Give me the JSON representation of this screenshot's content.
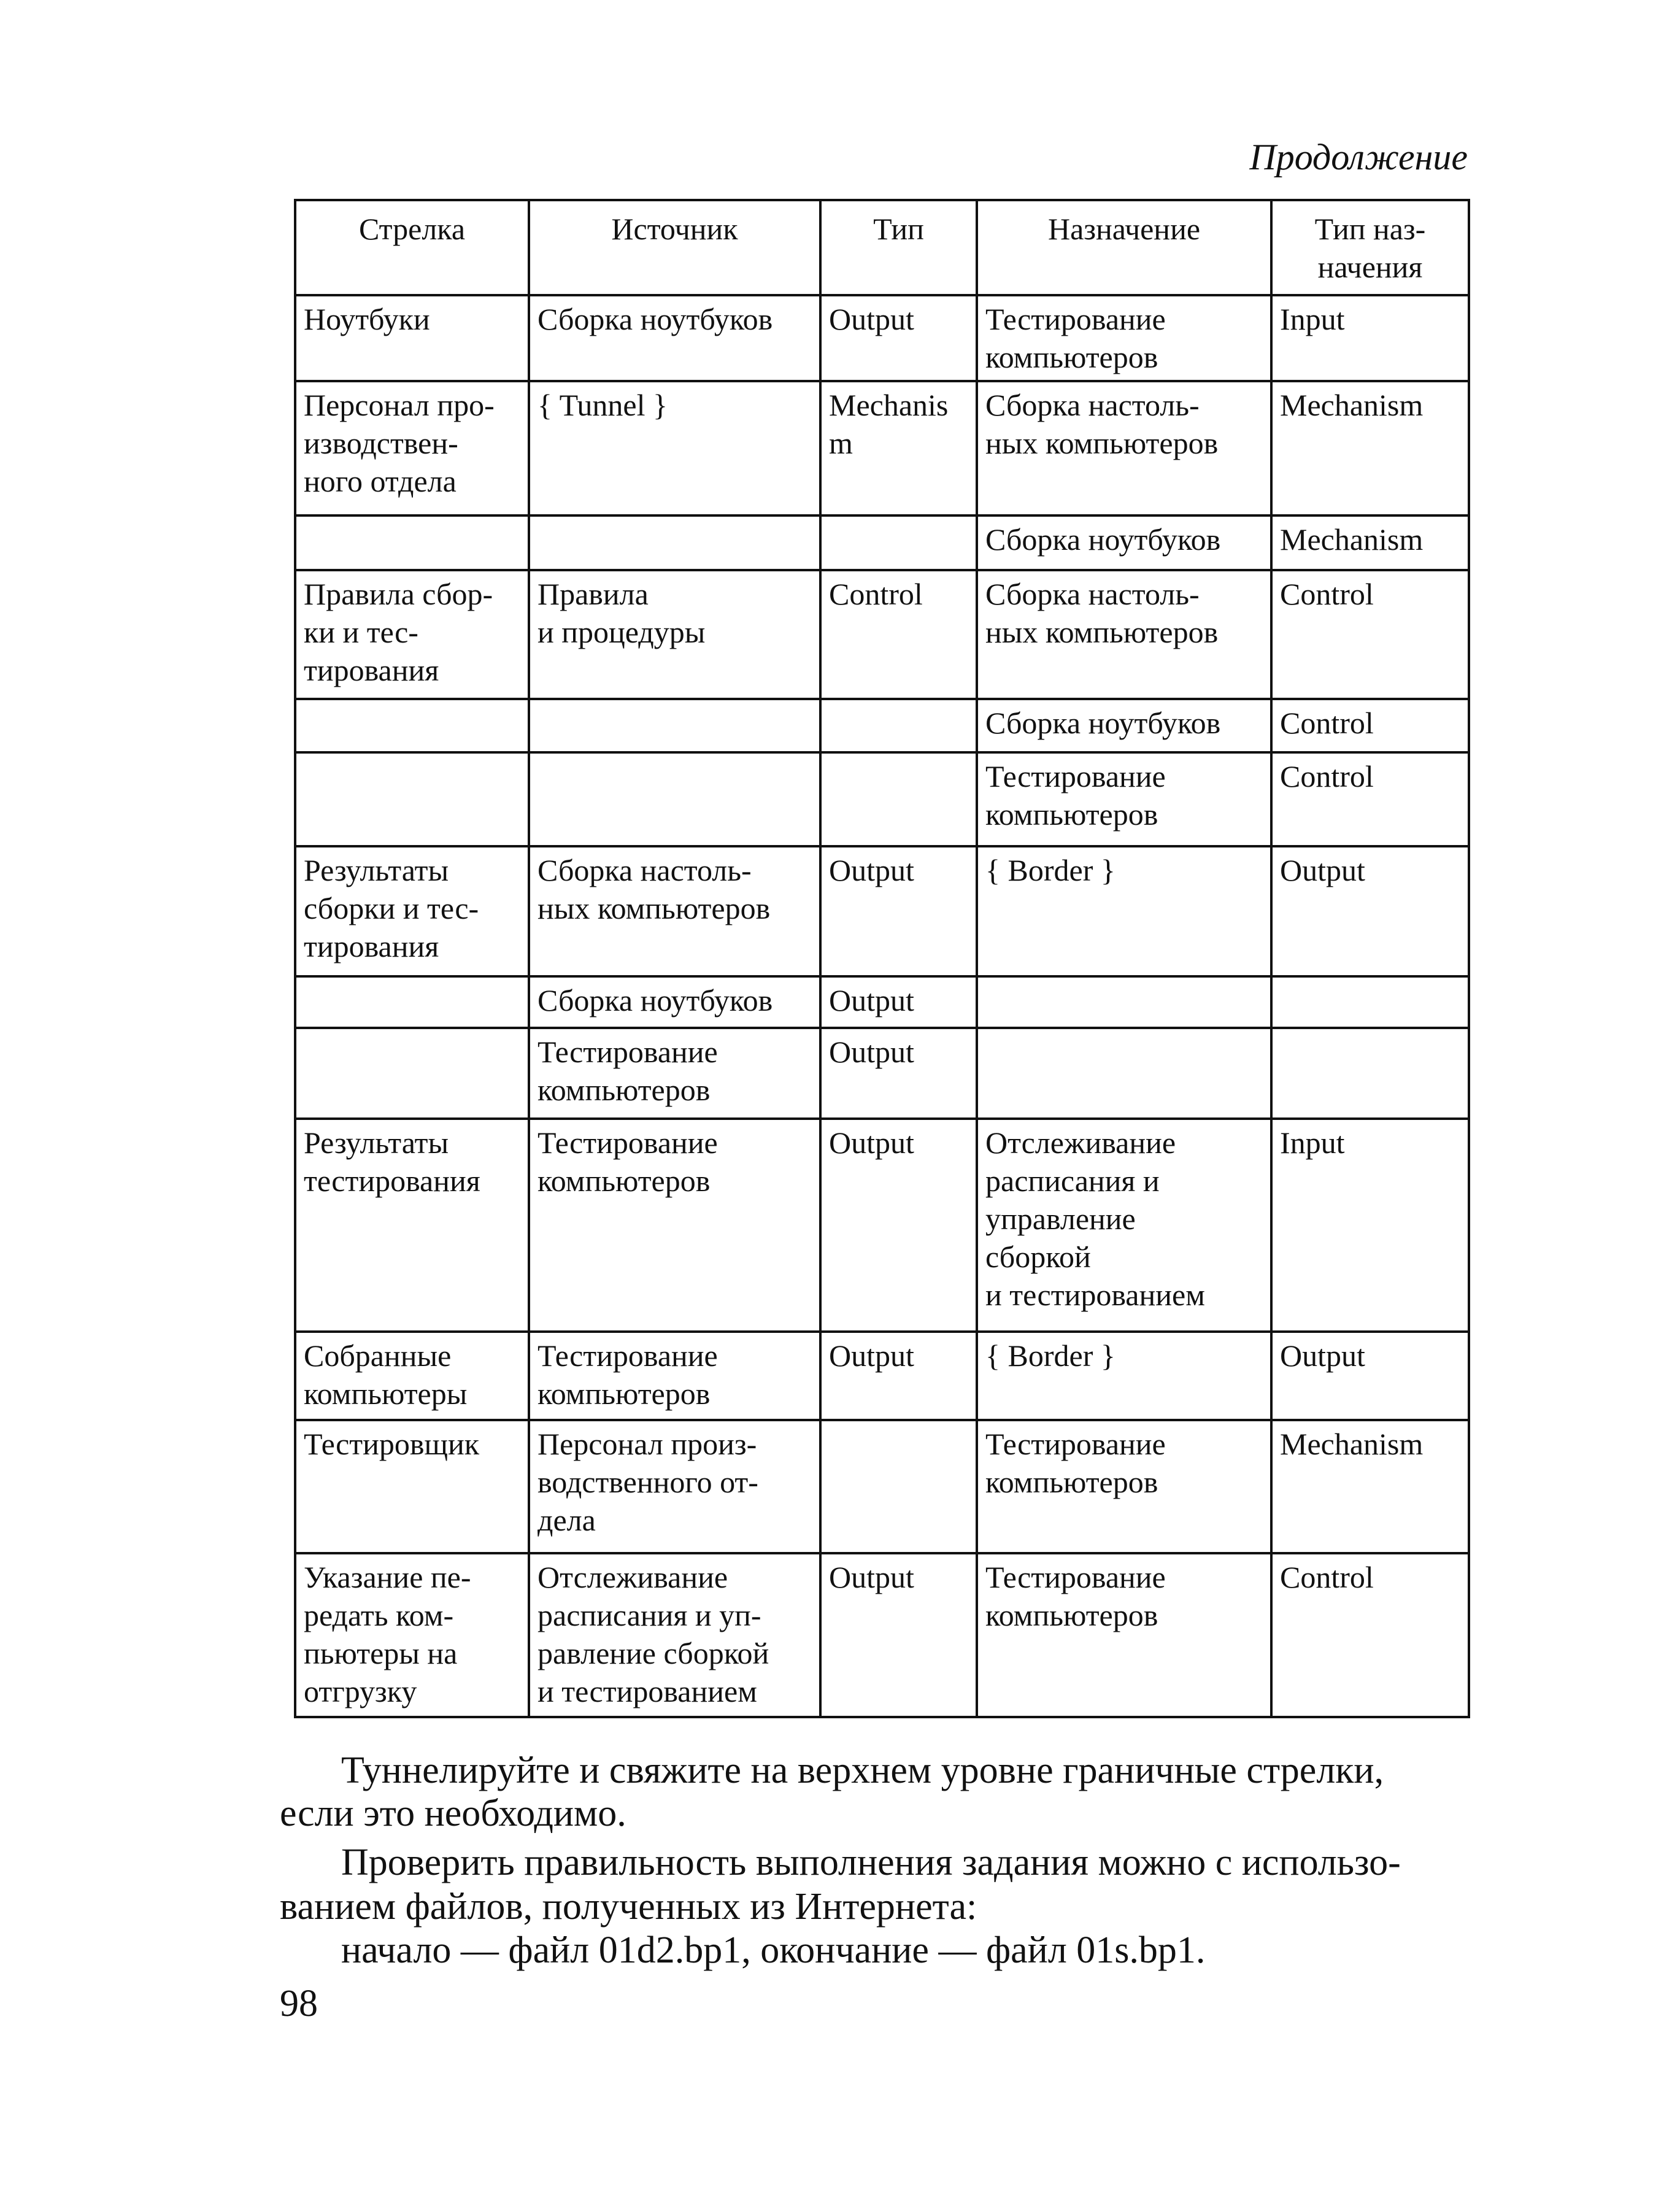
{
  "continuation_label": "Продолжение",
  "table": {
    "headers": [
      "Стрелка",
      "Источник",
      "Тип",
      "Назначение",
      "Тип наз-\nначения"
    ],
    "rows": [
      [
        "Ноутбуки",
        "Сборка ноутбуков",
        "Output",
        "Тестирование\nкомпьютеров",
        "Input"
      ],
      [
        "Персонал про-\nизводствен-\nного отдела",
        "{ Tunnel }",
        "Mechanis\nm",
        "Сборка настоль-\nных компьютеров",
        "Mechanism"
      ],
      [
        "",
        "",
        "",
        "Сборка ноутбуков",
        "Mechanism"
      ],
      [
        "Правила сбор-\nки и тес-\nтирования",
        "Правила\nи процедуры",
        "Control",
        "Сборка настоль-\nных компьютеров",
        "Control"
      ],
      [
        "",
        "",
        "",
        "Сборка ноутбуков",
        "Control"
      ],
      [
        "",
        "",
        "",
        "Тестирование\nкомпьютеров",
        "Control"
      ],
      [
        "Результаты\nсборки и тес-\nтирования",
        "Сборка настоль-\nных компьютеров",
        "Output",
        "{ Border }",
        "Output"
      ],
      [
        "",
        "Сборка ноутбуков",
        "Output",
        "",
        ""
      ],
      [
        "",
        "Тестирование\nкомпьютеров",
        "Output",
        "",
        ""
      ],
      [
        "Результаты\nтестирования",
        "Тестирование\nкомпьютеров",
        "Output",
        "Отслеживание\nрасписания и\nуправление\nсборкой\nи тестированием",
        "Input"
      ],
      [
        "Собранные\nкомпьютеры",
        "Тестирование\nкомпьютеров",
        "Output",
        "{ Border }",
        "Output"
      ],
      [
        "Тестировщик",
        "Персонал произ-\nводственного от-\nдела",
        "",
        "Тестирование\nкомпьютеров",
        "Mechanism"
      ],
      [
        "Указание пе-\nредать ком-\nпьютеры на\nотгрузку",
        "Отслеживание\nрасписания и уп-\nравление сборкой\nи тестированием",
        "Output",
        "Тестирование\nкомпьютеров",
        "Control"
      ]
    ]
  },
  "paragraphs": [
    [
      "Туннелируйте и свяжите на верхнем уровне граничные стрелки,",
      "если это необходимо."
    ],
    [
      "Проверить правильность выполнения задания можно с использо-",
      "ванием файлов, полученных из Интернета:"
    ],
    [
      "начало — файл 01d2.bp1, окончание — файл 01s.bp1."
    ]
  ],
  "page_number": "98"
}
